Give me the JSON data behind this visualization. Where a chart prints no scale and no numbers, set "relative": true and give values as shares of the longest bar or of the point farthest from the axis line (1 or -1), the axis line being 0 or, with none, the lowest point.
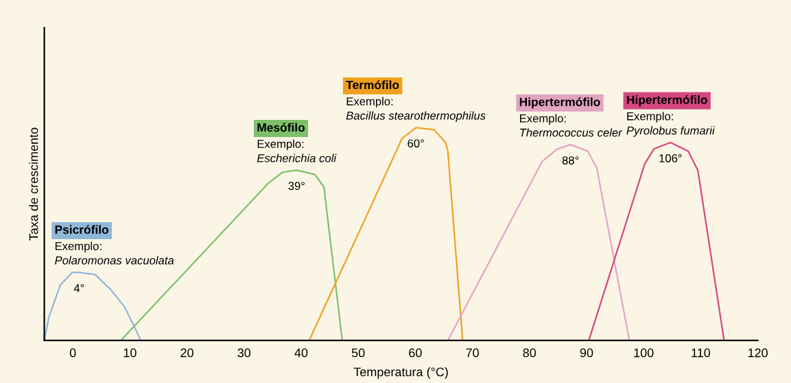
{
  "chart_data": {
    "type": "line",
    "relative": true,
    "xlabel": "Temperatura (°C)",
    "ylabel": "Taxa de crescimento",
    "xlim": [
      -5,
      120
    ],
    "xticks": [
      0,
      10,
      20,
      30,
      40,
      50,
      60,
      70,
      80,
      90,
      100,
      110,
      120
    ],
    "grid": false,
    "series": [
      {
        "name": "Psicrófilo",
        "color": "#8fb8d8",
        "x": [
          -5,
          -4.2,
          -2.2,
          -0.1,
          1.1,
          3.9,
          6.6,
          9.0,
          10.7,
          11.9
        ],
        "values": [
          0,
          0.11,
          0.26,
          0.32,
          0.32,
          0.31,
          0.24,
          0.16,
          0.07,
          0
        ]
      },
      {
        "name": "Mesófilo",
        "color": "#7cc06a",
        "x": [
          8.4,
          34.3,
          36.7,
          39.2,
          42.4,
          44.0,
          47.2
        ],
        "values": [
          0,
          0.74,
          0.79,
          0.8,
          0.78,
          0.72,
          0
        ]
      },
      {
        "name": "Termófilo",
        "color": "#f0a020",
        "x": [
          41.4,
          57.7,
          60.1,
          63.3,
          65.3,
          65.7,
          68.3
        ],
        "values": [
          0,
          0.95,
          1,
          0.99,
          0.93,
          0.89,
          0
        ]
      },
      {
        "name": "Hipertermófilo",
        "color": "#e3a3c3",
        "x": [
          65.7,
          82.2,
          84.9,
          87.2,
          90.2,
          91.8,
          97.5
        ],
        "values": [
          0,
          0.84,
          0.9,
          0.92,
          0.89,
          0.81,
          0
        ]
      },
      {
        "name": "Hipertermófilo",
        "color": "#d4487e",
        "x": [
          90.4,
          100.2,
          101.8,
          104.7,
          107.8,
          109.5,
          114.1
        ],
        "values": [
          0,
          0.83,
          0.9,
          0.93,
          0.89,
          0.8,
          0
        ]
      }
    ],
    "annotations": [
      "Exemplo:",
      "Polaromonas vacuolata",
      "Exemplo:",
      "Escherichia coli",
      "Exemplo:",
      "Bacillus stearothermophilus",
      "Exemplo:",
      "Thermococcus celer",
      "Exemplo:",
      "Pyrolobus fumarii",
      {
        "text": "4°",
        "x": 1.1,
        "y": 0.32
      },
      {
        "text": "39°",
        "x": 39.2,
        "y": 0.8
      },
      {
        "text": "60°",
        "x": 60.1,
        "y": 1
      },
      {
        "text": "88°",
        "x": 87.2,
        "y": 0.92
      },
      {
        "text": "106°",
        "x": 104.7,
        "y": 0.93
      }
    ]
  }
}
